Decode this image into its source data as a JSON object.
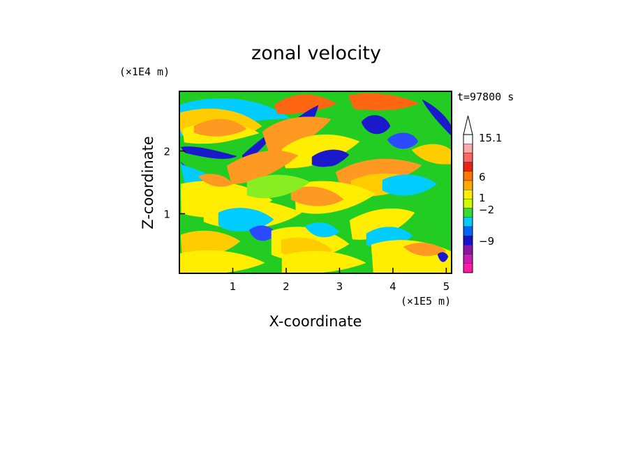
{
  "chart_data": {
    "type": "heatmap",
    "title": "zonal velocity",
    "xlabel": "X-coordinate",
    "ylabel": "Z-coordinate",
    "x_unit": "(×1E5 m)",
    "y_unit": "(×1E4 m)",
    "time_label": "t=97800 s",
    "xlim": [
      0,
      5.1
    ],
    "ylim": [
      0.05,
      2.95
    ],
    "x_ticks": [
      {
        "value": 1,
        "label": "1"
      },
      {
        "value": 2,
        "label": "2"
      },
      {
        "value": 3,
        "label": "3"
      },
      {
        "value": 4,
        "label": "4"
      },
      {
        "value": 5,
        "label": "5"
      }
    ],
    "y_ticks": [
      {
        "value": 1,
        "label": "1"
      },
      {
        "value": 2,
        "label": "2"
      }
    ],
    "colorbar": {
      "label_levels": [
        {
          "value": 15.1,
          "label": "15.1"
        },
        {
          "value": 6,
          "label": "6"
        },
        {
          "value": 1,
          "label": "1"
        },
        {
          "value": -2,
          "label": "−2"
        },
        {
          "value": -9,
          "label": "−9"
        }
      ],
      "colors": [
        "#ff1aaa",
        "#cc1ab2",
        "#8a14a6",
        "#1414cc",
        "#0066ff",
        "#00ccff",
        "#33dd33",
        "#ccff00",
        "#ffee00",
        "#ffaa00",
        "#ff7700",
        "#ee2211",
        "#ff6666",
        "#ffaaaa",
        "#ffffff"
      ]
    },
    "field_colors": {
      "deep_blue": "#1a1acc",
      "blue": "#2a4bff",
      "cyan": "#00ccff",
      "green": "#22cc22",
      "light_green": "#88ee22",
      "yellow": "#ffee00",
      "gold": "#ffcc00",
      "orange": "#ff9922",
      "red_orange": "#ff6611"
    }
  }
}
